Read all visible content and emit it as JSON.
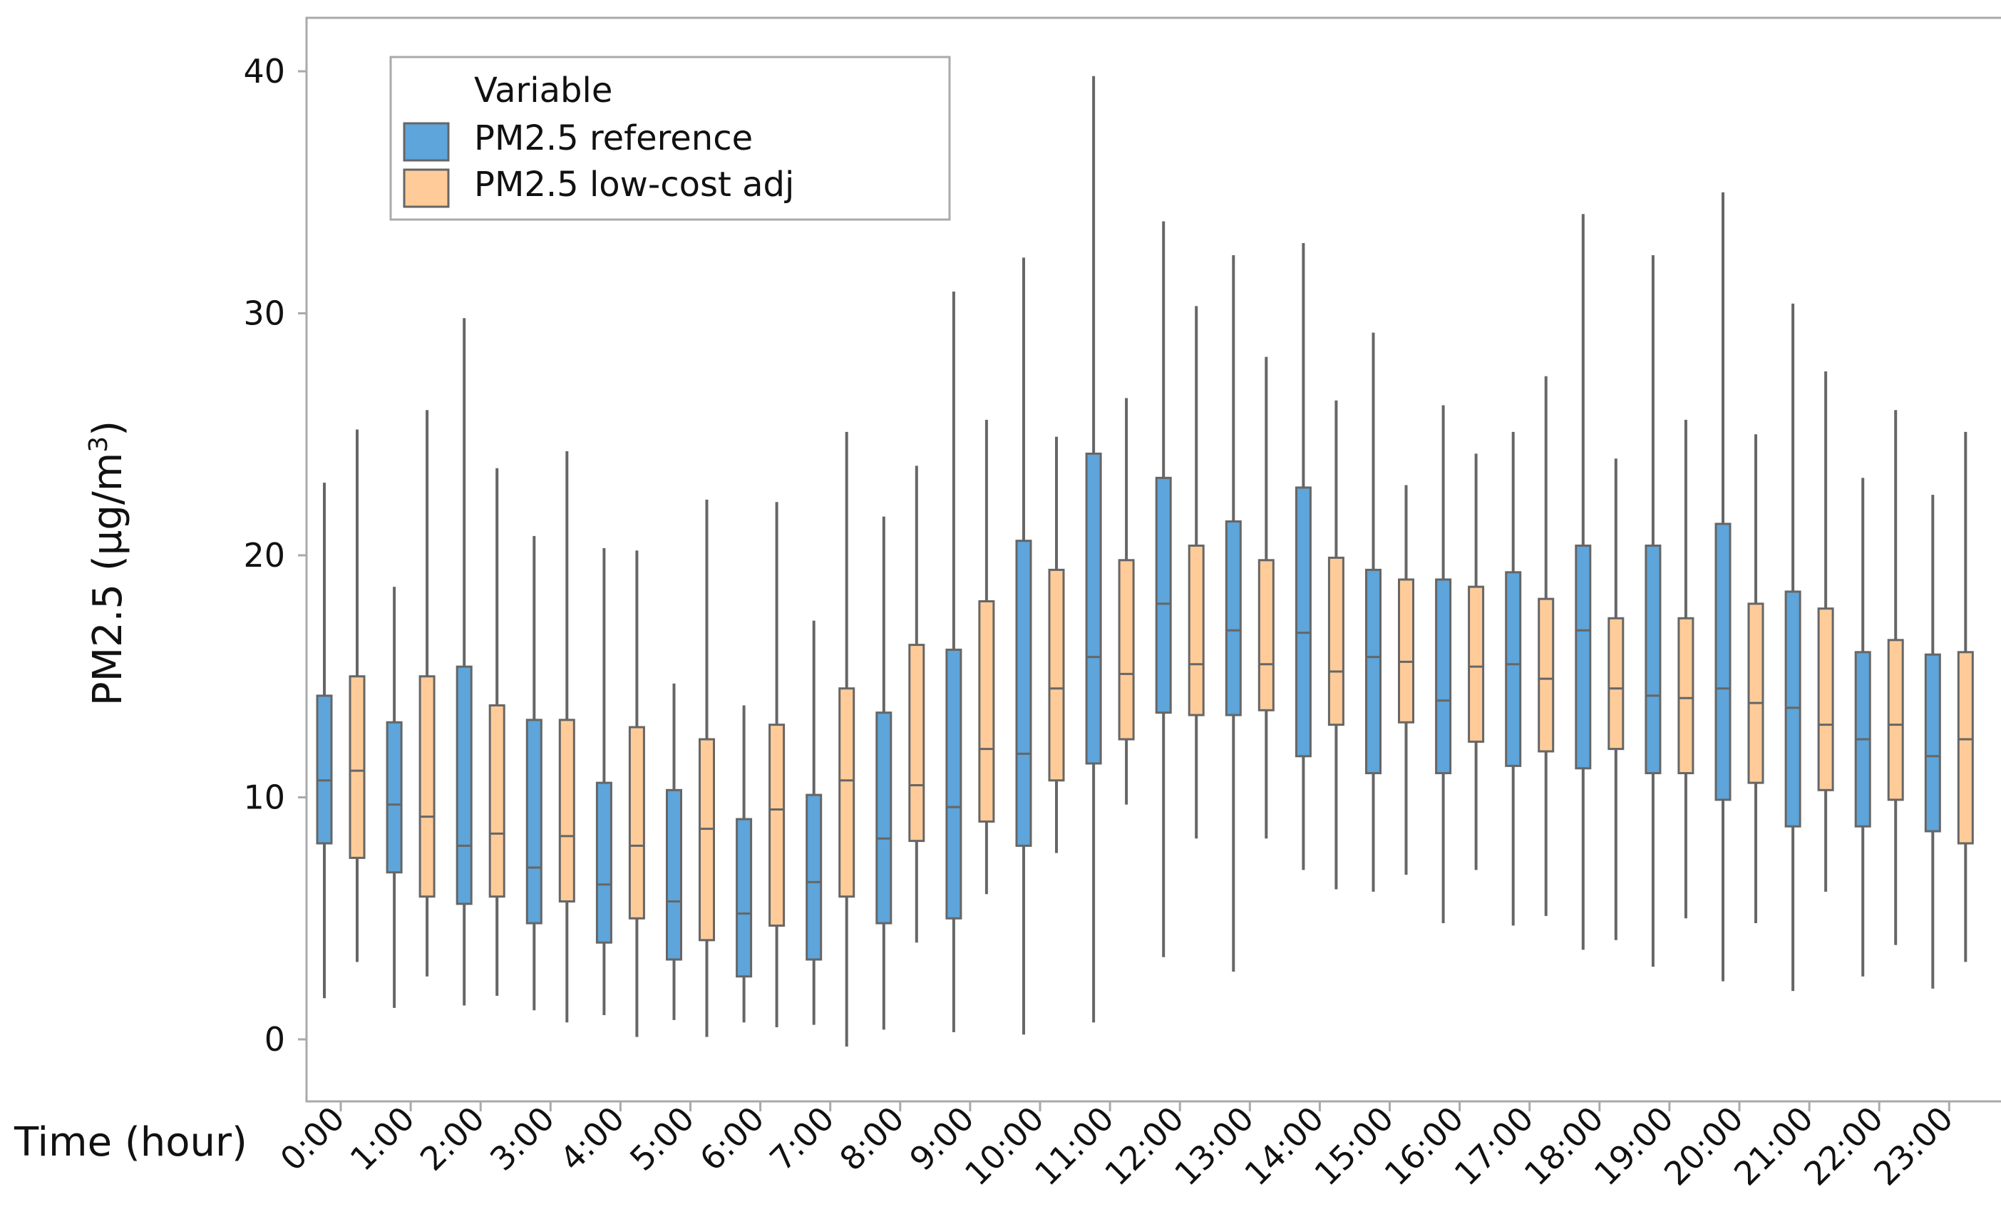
{
  "chart_data": {
    "type": "boxplot",
    "title": "",
    "xlabel": "Time (hour)",
    "ylabel": "PM2.5 (µg/m³)",
    "ylabel_base": "PM2.5 (µg/m",
    "ylabel_sup": "3",
    "ylabel_close": ")",
    "ylim": [
      -2.5,
      42
    ],
    "yticks": [
      0,
      10,
      20,
      30,
      40
    ],
    "categories": [
      "0:00",
      "1:00",
      "2:00",
      "3:00",
      "4:00",
      "5:00",
      "6:00",
      "7:00",
      "8:00",
      "9:00",
      "10:00",
      "11:00",
      "12:00",
      "13:00",
      "14:00",
      "15:00",
      "16:00",
      "17:00",
      "18:00",
      "19:00",
      "20:00",
      "21:00",
      "22:00",
      "23:00"
    ],
    "legend": {
      "title": "Variable",
      "position": "top-left",
      "entries": [
        "PM2.5 reference",
        "PM2.5 low-cost adj"
      ]
    },
    "series": [
      {
        "name": "PM2.5 reference",
        "color": "#5DA5DA",
        "boxes": [
          [
            1.7,
            8.1,
            10.7,
            14.2,
            23.0
          ],
          [
            1.3,
            6.9,
            9.7,
            13.1,
            18.7
          ],
          [
            1.4,
            5.6,
            8.0,
            15.4,
            29.8
          ],
          [
            1.2,
            4.8,
            7.1,
            13.2,
            20.8
          ],
          [
            1.0,
            4.0,
            6.4,
            10.6,
            20.3
          ],
          [
            0.8,
            3.3,
            5.7,
            10.3,
            14.7
          ],
          [
            0.7,
            2.6,
            5.2,
            9.1,
            13.8
          ],
          [
            0.6,
            3.3,
            6.5,
            10.1,
            17.3
          ],
          [
            0.4,
            4.8,
            8.3,
            13.5,
            21.6
          ],
          [
            0.3,
            5.0,
            9.6,
            16.1,
            30.9
          ],
          [
            0.2,
            8.0,
            11.8,
            20.6,
            32.3
          ],
          [
            0.7,
            11.4,
            15.8,
            24.2,
            39.8
          ],
          [
            3.4,
            13.5,
            18.0,
            23.2,
            33.8
          ],
          [
            2.8,
            13.4,
            16.9,
            21.4,
            32.4
          ],
          [
            7.0,
            11.7,
            16.8,
            22.8,
            32.9
          ],
          [
            6.1,
            11.0,
            15.8,
            19.4,
            29.2
          ],
          [
            4.8,
            11.0,
            14.0,
            19.0,
            26.2
          ],
          [
            4.7,
            11.3,
            15.5,
            19.3,
            25.1
          ],
          [
            3.7,
            11.2,
            16.9,
            20.4,
            34.1
          ],
          [
            3.0,
            11.0,
            14.2,
            20.4,
            32.4
          ],
          [
            2.4,
            9.9,
            14.5,
            21.3,
            35.0
          ],
          [
            2.0,
            8.8,
            13.7,
            18.5,
            30.4
          ],
          [
            2.6,
            8.8,
            12.4,
            16.0,
            23.2
          ],
          [
            2.1,
            8.6,
            11.7,
            15.9,
            22.5
          ]
        ]
      },
      {
        "name": "PM2.5 low-cost adj",
        "color": "#FFCC99",
        "boxes": [
          [
            3.2,
            7.5,
            11.1,
            15.0,
            25.2
          ],
          [
            2.6,
            5.9,
            9.2,
            15.0,
            26.0
          ],
          [
            1.8,
            5.9,
            8.5,
            13.8,
            23.6
          ],
          [
            0.7,
            5.7,
            8.4,
            13.2,
            24.3
          ],
          [
            0.1,
            5.0,
            8.0,
            12.9,
            20.2
          ],
          [
            0.1,
            4.1,
            8.7,
            12.4,
            22.3
          ],
          [
            0.5,
            4.7,
            9.5,
            13.0,
            22.2
          ],
          [
            -0.3,
            5.9,
            10.7,
            14.5,
            25.1
          ],
          [
            4.0,
            8.2,
            10.5,
            16.3,
            23.7
          ],
          [
            6.0,
            9.0,
            12.0,
            18.1,
            25.6
          ],
          [
            7.7,
            10.7,
            14.5,
            19.4,
            24.9
          ],
          [
            9.7,
            12.4,
            15.1,
            19.8,
            26.5
          ],
          [
            8.3,
            13.4,
            15.5,
            20.4,
            30.3
          ],
          [
            8.3,
            13.6,
            15.5,
            19.8,
            28.2
          ],
          [
            6.2,
            13.0,
            15.2,
            19.9,
            26.4
          ],
          [
            6.8,
            13.1,
            15.6,
            19.0,
            22.9
          ],
          [
            7.0,
            12.3,
            15.4,
            18.7,
            24.2
          ],
          [
            5.1,
            11.9,
            14.9,
            18.2,
            27.4
          ],
          [
            4.1,
            12.0,
            14.5,
            17.4,
            24.0
          ],
          [
            5.0,
            11.0,
            14.1,
            17.4,
            25.6
          ],
          [
            4.8,
            10.6,
            13.9,
            18.0,
            25.0
          ],
          [
            6.1,
            10.3,
            13.0,
            17.8,
            27.6
          ],
          [
            3.9,
            9.9,
            13.0,
            16.5,
            26.0
          ],
          [
            3.2,
            8.1,
            12.4,
            16.0,
            25.1
          ]
        ]
      }
    ]
  }
}
